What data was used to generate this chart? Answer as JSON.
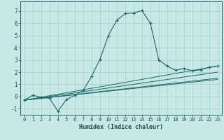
{
  "xlabel": "Humidex (Indice chaleur)",
  "background_color": "#c8e8e8",
  "grid_color": "#a8cccc",
  "line_color": "#1a6868",
  "xlim": [
    -0.5,
    23.5
  ],
  "ylim": [
    -1.5,
    7.8
  ],
  "xticks": [
    0,
    1,
    2,
    3,
    4,
    5,
    6,
    7,
    8,
    9,
    10,
    11,
    12,
    13,
    14,
    15,
    16,
    17,
    18,
    19,
    20,
    21,
    22,
    23
  ],
  "yticks": [
    -1,
    0,
    1,
    2,
    3,
    4,
    5,
    6,
    7
  ],
  "main_series": {
    "x": [
      0,
      1,
      2,
      3,
      4,
      5,
      6,
      7,
      8,
      9,
      10,
      11,
      12,
      13,
      14,
      15,
      16,
      17,
      18,
      19,
      20,
      21,
      22,
      23
    ],
    "y": [
      -0.3,
      0.1,
      -0.05,
      -0.15,
      -1.2,
      -0.25,
      0.1,
      0.5,
      1.65,
      3.05,
      5.0,
      6.25,
      6.8,
      6.85,
      7.05,
      6.0,
      3.0,
      2.5,
      2.15,
      2.3,
      2.1,
      2.2,
      2.4,
      2.5
    ]
  },
  "flat_series": [
    {
      "x": [
        0,
        23
      ],
      "y": [
        -0.3,
        2.5
      ]
    },
    {
      "x": [
        0,
        23
      ],
      "y": [
        -0.3,
        2.0
      ]
    },
    {
      "x": [
        0,
        23
      ],
      "y": [
        -0.3,
        1.5
      ]
    },
    {
      "x": [
        0,
        23
      ],
      "y": [
        -0.3,
        1.4
      ]
    }
  ]
}
